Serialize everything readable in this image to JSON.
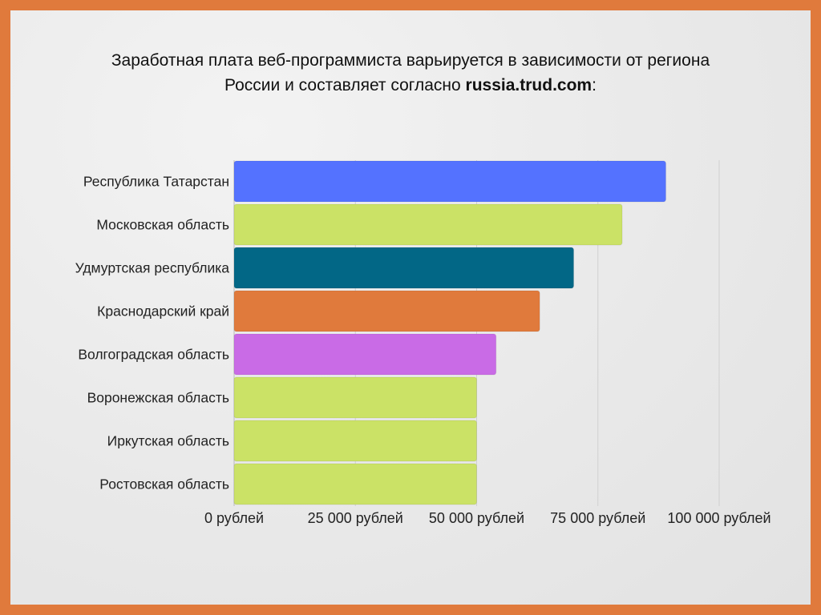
{
  "title": {
    "line1": "Заработная плата веб-программиста варьируется в зависимости от региона",
    "line2_prefix": "России и составляет согласно ",
    "line2_source": "russia.trud.com",
    "line2_suffix": ":"
  },
  "chart_data": {
    "type": "bar",
    "orientation": "horizontal",
    "title": "Заработная плата веб-программиста варьируется в зависимости от региона России и составляет согласно russia.trud.com:",
    "categories": [
      "Республика Татарстан",
      "Московская область",
      "Удмуртская республика",
      "Краснодарский край",
      "Волгоградская область",
      "Воронежская область",
      "Иркутская область",
      "Ростовская область"
    ],
    "values": [
      89000,
      80000,
      70000,
      63000,
      54000,
      50000,
      50000,
      50000
    ],
    "colors": [
      "#5472ff",
      "#cbe266",
      "#026786",
      "#e07a3c",
      "#c96be6",
      "#cbe266",
      "#cbe266",
      "#cbe266"
    ],
    "xlim": [
      0,
      100000
    ],
    "xticks": [
      0,
      25000,
      50000,
      75000,
      100000
    ],
    "xtick_labels": [
      "0 рублей",
      "25 000 рублей",
      "50 000 рублей",
      "75 000 рублей",
      "100 000 рублей"
    ],
    "xlabel": "",
    "ylabel": "",
    "grid": true
  },
  "colors": {
    "border": "#e07a3c",
    "grid": "#d0d0d0"
  }
}
